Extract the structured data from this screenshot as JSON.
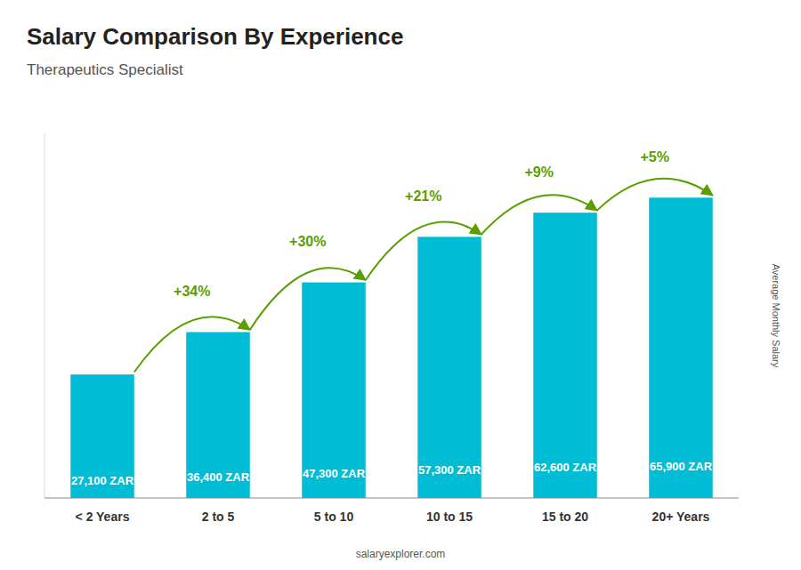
{
  "chart_data": {
    "type": "bar",
    "title": "Salary Comparison By Experience",
    "subtitle": "Therapeutics Specialist",
    "categories": [
      "< 2 Years",
      "2 to 5",
      "5 to 10",
      "10 to 15",
      "15 to 20",
      "20+ Years"
    ],
    "values": [
      27100,
      36400,
      47300,
      57300,
      62600,
      65900
    ],
    "value_labels": [
      "27,100 ZAR",
      "36,400 ZAR",
      "47,300 ZAR",
      "57,300 ZAR",
      "62,600 ZAR",
      "65,900 ZAR"
    ],
    "data_labels": true,
    "color": "#00bcd4",
    "ylim": [
      0,
      80000
    ],
    "tick_labels": "x",
    "grid": false,
    "y_label": "Average Monthly Salary",
    "annotations": [
      "+34%",
      "+30%",
      "+21%",
      "+9%",
      "+5%"
    ],
    "footer": "salaryexplorer.com"
  }
}
